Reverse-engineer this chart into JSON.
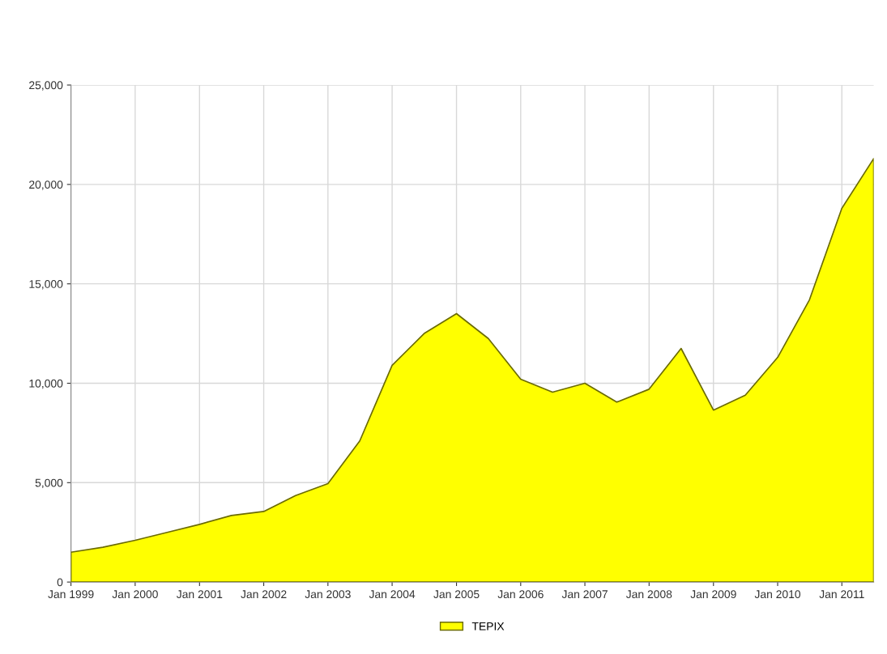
{
  "chart_data": {
    "type": "area",
    "x": [
      "1999-01",
      "1999-07",
      "2000-01",
      "2000-07",
      "2001-01",
      "2001-07",
      "2002-01",
      "2002-07",
      "2003-01",
      "2003-07",
      "2004-01",
      "2004-07",
      "2005-01",
      "2005-07",
      "2006-01",
      "2006-07",
      "2007-01",
      "2007-07",
      "2008-01",
      "2008-07",
      "2009-01",
      "2009-07",
      "2010-01",
      "2010-07",
      "2011-01",
      "2011-07"
    ],
    "series": [
      {
        "name": "TEPIX",
        "color": "#ffff00",
        "values": [
          1500,
          1750,
          2100,
          2500,
          2900,
          3350,
          3550,
          4350,
          4950,
          7100,
          10900,
          12500,
          13500,
          12250,
          10200,
          9550,
          10000,
          9050,
          9700,
          11750,
          8650,
          9400,
          11300,
          14200,
          18800,
          21300
        ]
      }
    ],
    "xlim": [
      "1999-01",
      "2011-07"
    ],
    "xticks": [
      {
        "value": "1999-01",
        "label": "Jan 1999"
      },
      {
        "value": "2000-01",
        "label": "Jan 2000"
      },
      {
        "value": "2001-01",
        "label": "Jan 2001"
      },
      {
        "value": "2002-01",
        "label": "Jan 2002"
      },
      {
        "value": "2003-01",
        "label": "Jan 2003"
      },
      {
        "value": "2004-01",
        "label": "Jan 2004"
      },
      {
        "value": "2005-01",
        "label": "Jan 2005"
      },
      {
        "value": "2006-01",
        "label": "Jan 2006"
      },
      {
        "value": "2007-01",
        "label": "Jan 2007"
      },
      {
        "value": "2008-01",
        "label": "Jan 2008"
      },
      {
        "value": "2009-01",
        "label": "Jan 2009"
      },
      {
        "value": "2010-01",
        "label": "Jan 2010"
      },
      {
        "value": "2011-01",
        "label": "Jan 2011"
      }
    ],
    "ylim": [
      0,
      25000
    ],
    "yticks": [
      {
        "value": 0,
        "label": "0"
      },
      {
        "value": 5000,
        "label": "5,000"
      },
      {
        "value": 10000,
        "label": "10,000"
      },
      {
        "value": 15000,
        "label": "15,000"
      },
      {
        "value": 20000,
        "label": "20,000"
      },
      {
        "value": 25000,
        "label": "25,000"
      }
    ],
    "grid": true,
    "legend": "bottom"
  }
}
